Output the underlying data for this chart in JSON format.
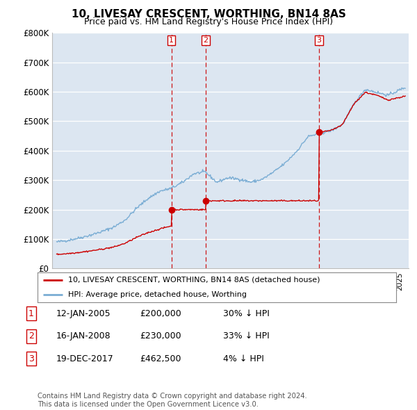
{
  "title": "10, LIVESAY CRESCENT, WORTHING, BN14 8AS",
  "subtitle": "Price paid vs. HM Land Registry's House Price Index (HPI)",
  "ylim": [
    0,
    800000
  ],
  "yticks": [
    0,
    100000,
    200000,
    300000,
    400000,
    500000,
    600000,
    700000,
    800000
  ],
  "ytick_labels": [
    "£0",
    "£100K",
    "£200K",
    "£300K",
    "£400K",
    "£500K",
    "£600K",
    "£700K",
    "£800K"
  ],
  "xlim_start": 1994.6,
  "xlim_end": 2025.8,
  "transactions": [
    {
      "date_label": "1",
      "year": 2005.04,
      "price": 200000
    },
    {
      "date_label": "2",
      "year": 2008.04,
      "price": 230000
    },
    {
      "date_label": "3",
      "year": 2017.96,
      "price": 462500
    }
  ],
  "table_entries": [
    {
      "num": "1",
      "date": "12-JAN-2005",
      "price": "£200,000",
      "hpi": "30% ↓ HPI"
    },
    {
      "num": "2",
      "date": "16-JAN-2008",
      "price": "£230,000",
      "hpi": "33% ↓ HPI"
    },
    {
      "num": "3",
      "date": "19-DEC-2017",
      "price": "£462,500",
      "hpi": "4% ↓ HPI"
    }
  ],
  "legend_line1": "10, LIVESAY CRESCENT, WORTHING, BN14 8AS (detached house)",
  "legend_line2": "HPI: Average price, detached house, Worthing",
  "footer": "Contains HM Land Registry data © Crown copyright and database right 2024.\nThis data is licensed under the Open Government Licence v3.0.",
  "line_color_red": "#cc0000",
  "line_color_blue": "#7aadd4",
  "background_color": "#ffffff",
  "plot_bg_color": "#dce6f1",
  "hpi_base_points": [
    [
      1995,
      90000
    ],
    [
      1996,
      96000
    ],
    [
      1997,
      104000
    ],
    [
      1998,
      114000
    ],
    [
      1999,
      126000
    ],
    [
      2000,
      141000
    ],
    [
      2001,
      165000
    ],
    [
      2002,
      205000
    ],
    [
      2003,
      238000
    ],
    [
      2004,
      262000
    ],
    [
      2005,
      272000
    ],
    [
      2006,
      292000
    ],
    [
      2007,
      322000
    ],
    [
      2008,
      328000
    ],
    [
      2009,
      293000
    ],
    [
      2010,
      308000
    ],
    [
      2011,
      303000
    ],
    [
      2012,
      293000
    ],
    [
      2013,
      303000
    ],
    [
      2014,
      328000
    ],
    [
      2015,
      358000
    ],
    [
      2016,
      398000
    ],
    [
      2017,
      448000
    ],
    [
      2018,
      458000
    ],
    [
      2019,
      468000
    ],
    [
      2020,
      488000
    ],
    [
      2021,
      558000
    ],
    [
      2022,
      608000
    ],
    [
      2023,
      598000
    ],
    [
      2024,
      588000
    ],
    [
      2025.5,
      615000
    ]
  ],
  "red_base_points": [
    [
      1995,
      48000
    ],
    [
      1996,
      51000
    ],
    [
      1997,
      55000
    ],
    [
      1998,
      60000
    ],
    [
      1999,
      66000
    ],
    [
      2000,
      73000
    ],
    [
      2001,
      86000
    ],
    [
      2002,
      106000
    ],
    [
      2003,
      122000
    ],
    [
      2004,
      134000
    ],
    [
      2005.03,
      145000
    ],
    [
      2005.05,
      200000
    ],
    [
      2006,
      200000
    ],
    [
      2007,
      200000
    ],
    [
      2008.03,
      200000
    ],
    [
      2008.05,
      230000
    ],
    [
      2009,
      230000
    ],
    [
      2010,
      230000
    ],
    [
      2011,
      230000
    ],
    [
      2012,
      230000
    ],
    [
      2013,
      230000
    ],
    [
      2014,
      230000
    ],
    [
      2015,
      230000
    ],
    [
      2016,
      230000
    ],
    [
      2017.0,
      230000
    ],
    [
      2017.95,
      230000
    ],
    [
      2017.97,
      462500
    ],
    [
      2018.0,
      462500
    ],
    [
      2019,
      468000
    ],
    [
      2020,
      488000
    ],
    [
      2021,
      558000
    ],
    [
      2022,
      598000
    ],
    [
      2023,
      588000
    ],
    [
      2024,
      572000
    ],
    [
      2025.5,
      585000
    ]
  ]
}
